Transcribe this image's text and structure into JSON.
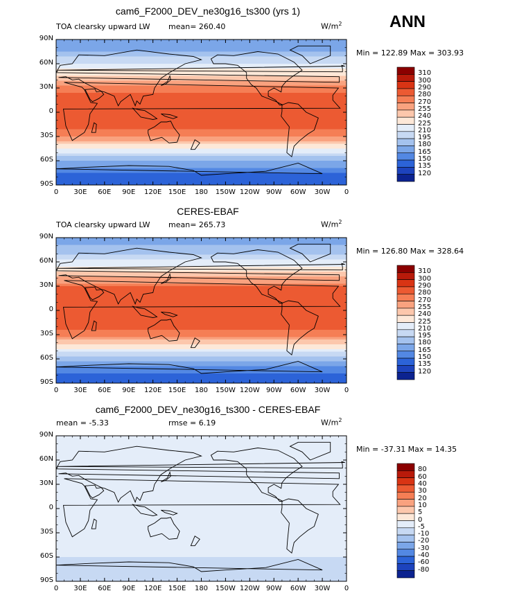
{
  "season_label": "ANN",
  "lat_ticks": [
    "90N",
    "60N",
    "30N",
    "0",
    "30S",
    "60S",
    "90S"
  ],
  "lon_ticks": [
    "0",
    "30E",
    "60E",
    "90E",
    "120E",
    "150E",
    "180",
    "150W",
    "120W",
    "90W",
    "60W",
    "30W",
    "0"
  ],
  "panels": [
    {
      "title": "cam6_F2000_DEV_ne30g16_ts300 (yrs 1)",
      "left_label": "TOA clearsky upward LW",
      "mean_label": "mean= 260.40",
      "rmse_label": "",
      "units_base": "W/m",
      "units_exp": "2",
      "minmax": "Min = 122.89 Max = 303.93",
      "colorbar_labels": [
        "310",
        "300",
        "290",
        "280",
        "270",
        "255",
        "240",
        "225",
        "210",
        "195",
        "180",
        "165",
        "150",
        "135",
        "120"
      ],
      "colors": [
        "#8b0000",
        "#b81a0a",
        "#d93414",
        "#ec5a32",
        "#f57e55",
        "#f9a27f",
        "#fcc7ac",
        "#fde8d8",
        "#e4edf9",
        "#c7d9f3",
        "#a4c2ee",
        "#7ba6e8",
        "#5388e3",
        "#2c63d8",
        "#1d43bd",
        "#0c2390"
      ],
      "kind": "abs"
    },
    {
      "title": "CERES-EBAF",
      "left_label": "TOA clearsky upward LW",
      "mean_label": "mean= 265.73",
      "rmse_label": "",
      "units_base": "W/m",
      "units_exp": "2",
      "minmax": "Min = 126.80 Max = 328.64",
      "colorbar_labels": [
        "310",
        "300",
        "290",
        "280",
        "270",
        "255",
        "240",
        "225",
        "210",
        "195",
        "180",
        "165",
        "150",
        "135",
        "120"
      ],
      "colors": [
        "#8b0000",
        "#b81a0a",
        "#d93414",
        "#ec5a32",
        "#f57e55",
        "#f9a27f",
        "#fcc7ac",
        "#fde8d8",
        "#e4edf9",
        "#c7d9f3",
        "#a4c2ee",
        "#7ba6e8",
        "#5388e3",
        "#2c63d8",
        "#1d43bd",
        "#0c2390"
      ],
      "kind": "abs"
    },
    {
      "title": "cam6_F2000_DEV_ne30g16_ts300 - CERES-EBAF",
      "left_label": "mean =  -5.33",
      "mean_label": "",
      "rmse_label": "rmse =   6.19",
      "units_base": "W/m",
      "units_exp": "2",
      "minmax": "Min = -37.31 Max =  14.35",
      "colorbar_labels": [
        "80",
        "60",
        "40",
        "30",
        "20",
        "10",
        "5",
        "0",
        "-5",
        "-10",
        "-20",
        "-30",
        "-40",
        "-60",
        "-80"
      ],
      "colors": [
        "#8b0000",
        "#b81a0a",
        "#d93414",
        "#ec5a32",
        "#f57e55",
        "#f9a27f",
        "#fcc7ac",
        "#fde8d8",
        "#e4edf9",
        "#c7d9f3",
        "#a4c2ee",
        "#7ba6e8",
        "#5388e3",
        "#2c63d8",
        "#1d43bd",
        "#0c2390"
      ],
      "kind": "diff"
    }
  ],
  "chart_data": [
    {
      "type": "heatmap",
      "title": "cam6_F2000_DEV_ne30g16_ts300 (yrs 1)",
      "field": "TOA clearsky upward LW",
      "units": "W/m2",
      "mean": 260.4,
      "min": 122.89,
      "max": 303.93,
      "levels": [
        120,
        135,
        150,
        165,
        180,
        195,
        210,
        225,
        240,
        255,
        270,
        280,
        290,
        300,
        310
      ],
      "zonal_profile_lat": [
        -90,
        -75,
        -60,
        -45,
        -30,
        -15,
        0,
        15,
        30,
        45,
        60,
        75,
        90
      ],
      "zonal_profile_value": [
        135,
        150,
        180,
        225,
        270,
        285,
        280,
        285,
        275,
        240,
        210,
        180,
        165
      ]
    },
    {
      "type": "heatmap",
      "title": "CERES-EBAF",
      "field": "TOA clearsky upward LW",
      "units": "W/m2",
      "mean": 265.73,
      "min": 126.8,
      "max": 328.64,
      "levels": [
        120,
        135,
        150,
        165,
        180,
        195,
        210,
        225,
        240,
        255,
        270,
        280,
        290,
        300,
        310
      ],
      "zonal_profile_lat": [
        -90,
        -75,
        -60,
        -45,
        -30,
        -15,
        0,
        15,
        30,
        45,
        60,
        75,
        90
      ],
      "zonal_profile_value": [
        135,
        155,
        185,
        230,
        275,
        290,
        285,
        290,
        280,
        245,
        215,
        185,
        170
      ]
    },
    {
      "type": "heatmap",
      "title": "cam6_F2000_DEV_ne30g16_ts300 - CERES-EBAF",
      "units": "W/m2",
      "mean": -5.33,
      "rmse": 6.19,
      "min": -37.31,
      "max": 14.35,
      "levels": [
        -80,
        -60,
        -40,
        -30,
        -20,
        -10,
        -5,
        0,
        5,
        10,
        20,
        30,
        40,
        60,
        80
      ],
      "zonal_profile_lat": [
        -90,
        -75,
        -60,
        -45,
        -30,
        -15,
        0,
        15,
        30,
        45,
        60,
        75,
        90
      ],
      "zonal_profile_value": [
        -5,
        -10,
        -5,
        -5,
        -5,
        -5,
        -5,
        -5,
        -5,
        -5,
        -5,
        -5,
        -5
      ]
    }
  ]
}
